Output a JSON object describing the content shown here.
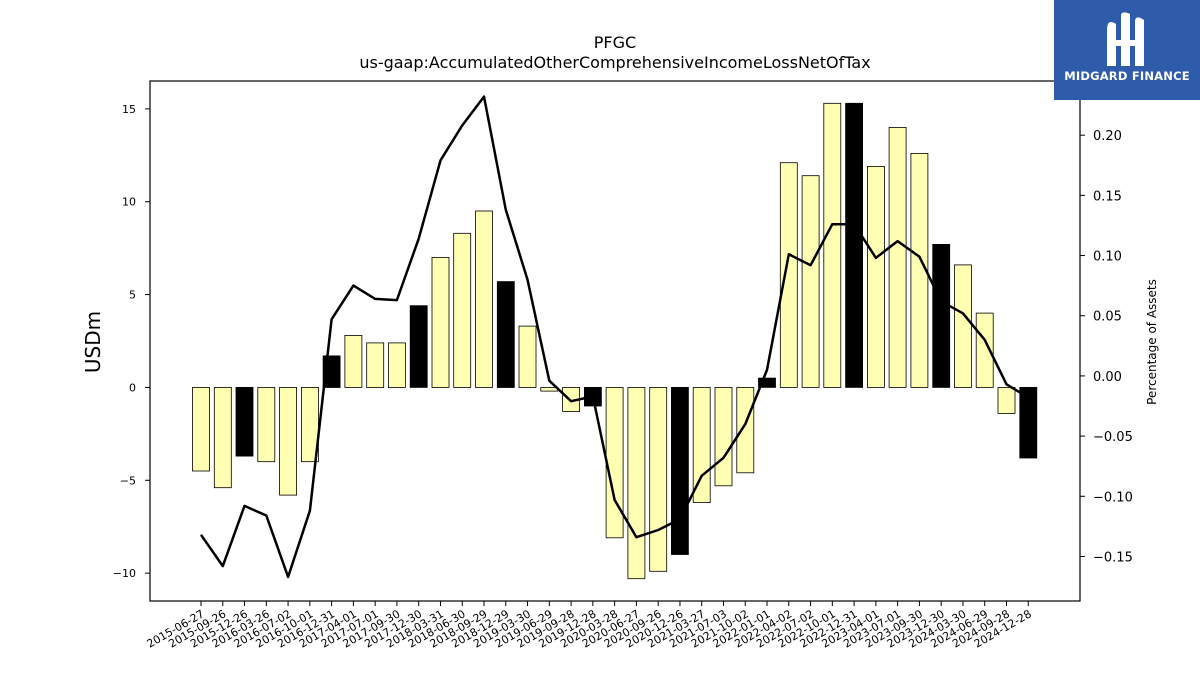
{
  "title_line1": "PFGC",
  "title_line2": "us-gaap:AccumulatedOtherComprehensiveIncomeLossNetOfTax",
  "logo_text": "MIDGARD FINANCE",
  "chart_data": {
    "type": "bar",
    "title": "PFGC",
    "subtitle": "us-gaap:AccumulatedOtherComprehensiveIncomeLossNetOfTax",
    "ylabel": "USDm",
    "y2label": "Percentage of Assets",
    "ylim": [
      -11.5,
      16.5
    ],
    "y2lim": [
      -0.187,
      0.245
    ],
    "yticks": [
      -10,
      -5,
      0,
      5,
      10,
      15
    ],
    "y2ticks": [
      -0.15,
      -0.1,
      -0.05,
      0.0,
      0.05,
      0.1,
      0.15,
      0.2
    ],
    "y2tick_labels": [
      "−0.15",
      "−0.10",
      "−0.05",
      "0.00",
      "0.05",
      "0.10",
      "0.15",
      "0.20"
    ],
    "categories": [
      "2015-06-27",
      "2015-09-26",
      "2015-12-26",
      "2016-03-26",
      "2016-07-02",
      "2016-10-01",
      "2016-12-31",
      "2017-04-01",
      "2017-07-01",
      "2017-09-30",
      "2017-12-30",
      "2018-03-31",
      "2018-06-30",
      "2018-09-29",
      "2018-12-29",
      "2019-03-30",
      "2019-06-29",
      "2019-09-28",
      "2019-12-28",
      "2020-03-28",
      "2020-06-27",
      "2020-09-26",
      "2020-12-26",
      "2021-03-27",
      "2021-07-03",
      "2021-10-02",
      "2022-01-01",
      "2022-04-02",
      "2022-07-02",
      "2022-10-01",
      "2022-12-31",
      "2023-04-01",
      "2023-07-01",
      "2023-09-30",
      "2023-12-30",
      "2024-03-30",
      "2024-06-29",
      "2024-09-28",
      "2024-12-28"
    ],
    "series": [
      {
        "type": "bar",
        "values": [
          -4.5,
          -5.4,
          -3.7,
          -4.0,
          -5.8,
          -4.0,
          1.7,
          2.8,
          2.4,
          2.4,
          4.4,
          7.0,
          8.3,
          9.5,
          5.7,
          3.3,
          -0.2,
          -1.3,
          -1.0,
          -8.1,
          -10.3,
          -9.9,
          -9.0,
          -6.2,
          -5.3,
          -4.6,
          0.5,
          12.1,
          11.4,
          15.3,
          15.3,
          11.9,
          14.0,
          12.6,
          7.7,
          6.6,
          4.0,
          -1.4,
          -3.8
        ],
        "highlight_color": "#000000",
        "default_color": "#ffffb3",
        "highlight_categories": [
          "2015-12-26",
          "2016-12-31",
          "2017-12-30",
          "2018-12-29",
          "2019-12-28",
          "2020-12-26",
          "2022-01-01",
          "2022-12-31",
          "2023-12-30",
          "2024-12-28"
        ]
      },
      {
        "type": "line",
        "axis": "right",
        "color": "#000000",
        "values": [
          -0.132,
          -0.158,
          -0.108,
          -0.116,
          -0.167,
          -0.112,
          0.047,
          0.075,
          0.064,
          0.063,
          0.114,
          0.179,
          0.208,
          0.232,
          0.138,
          0.08,
          -0.004,
          -0.021,
          -0.017,
          -0.103,
          -0.134,
          -0.128,
          -0.119,
          -0.083,
          -0.068,
          -0.04,
          0.005,
          0.101,
          0.092,
          0.126,
          0.126,
          0.098,
          0.112,
          0.099,
          0.062,
          0.052,
          0.03,
          -0.007,
          -0.018
        ]
      }
    ]
  }
}
